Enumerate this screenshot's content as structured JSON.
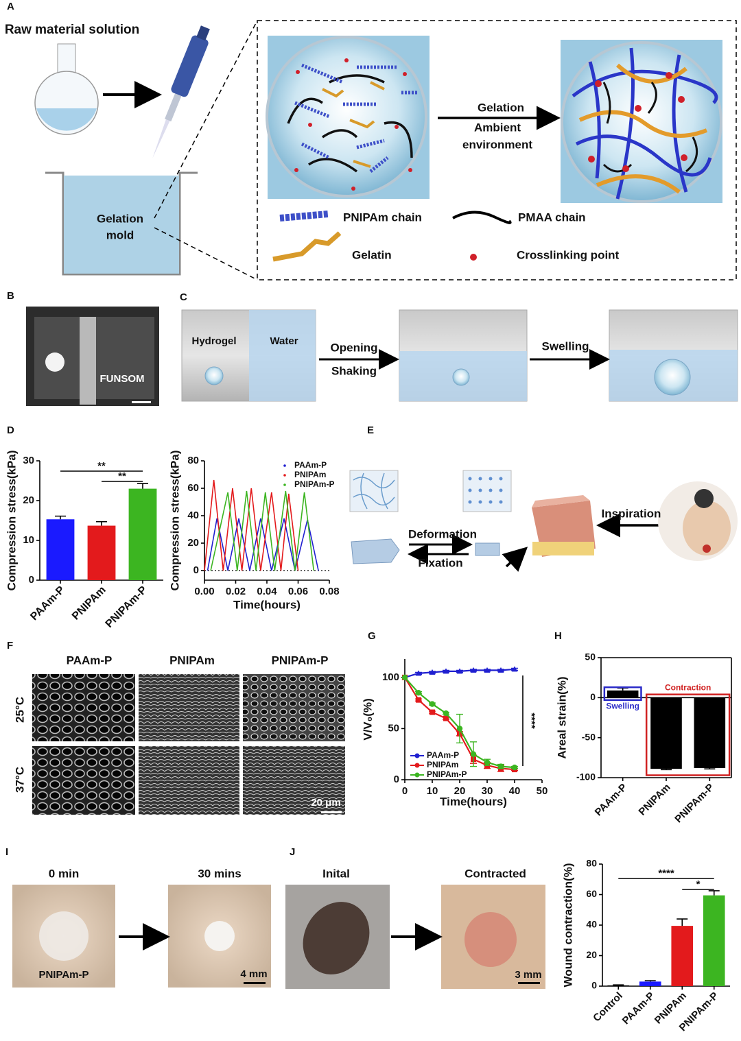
{
  "panels": {
    "letters": [
      "A",
      "B",
      "C",
      "D",
      "E",
      "F",
      "G",
      "H",
      "I",
      "J"
    ]
  },
  "panel_a": {
    "raw_material": "Raw material solution",
    "mold": [
      "Gelation",
      "mold"
    ],
    "process": [
      "Gelation",
      "Ambient",
      "environment"
    ],
    "legend": [
      "PNIPAm chain",
      "PMAA chain",
      "Gelatin",
      "Crosslinking point"
    ]
  },
  "panel_b": {
    "label": "FUNSOM"
  },
  "panel_c": {
    "hydrogel": "Hydrogel",
    "water": "Water",
    "step1": [
      "Opening",
      "Shaking"
    ],
    "step2": "Swelling"
  },
  "panel_e": {
    "deformation": "Deformation",
    "fixation": "Fixation",
    "inspiration": "Inspiration"
  },
  "panel_f": {
    "columns": [
      "PAAm-P",
      "PNIPAm",
      "PNIPAm-P"
    ],
    "rows": [
      "25°C",
      "37°C"
    ],
    "scale": "20 μm"
  },
  "panel_i": {
    "times": [
      "0 min",
      "30 mins"
    ],
    "sample": "PNIPAm-P",
    "scale": "4 mm"
  },
  "panel_j": {
    "states": [
      "Inital",
      "Contracted"
    ],
    "scale": "3 mm"
  },
  "chart_data": [
    {
      "type": "bar",
      "ylabel": "Compression stress(kPa)",
      "categories": [
        "PAAm-P",
        "PNIPAm",
        "PNIPAm-P"
      ],
      "values": [
        15.3,
        13.7,
        23
      ],
      "errors": [
        0.8,
        1.0,
        1.3
      ],
      "colors": [
        "#1a1aff",
        "#e31a1c",
        "#3cb521"
      ],
      "ylim": [
        0,
        30
      ],
      "yticks": [
        0,
        10,
        20,
        30
      ],
      "significance": [
        "**",
        "**"
      ]
    },
    {
      "type": "line",
      "ylabel": "Compression stress(kPa)",
      "xlabel": "Time(hours)",
      "legend": "upper right",
      "series": [
        {
          "name": "PAAm-P",
          "color": "#2020d0",
          "x": [
            0.002,
            0.008,
            0.015,
            0.022,
            0.029,
            0.036,
            0.043,
            0.051,
            0.058,
            0.066,
            0.073
          ],
          "values": [
            0,
            38,
            0,
            38,
            0,
            38,
            0,
            38,
            0,
            37,
            0
          ]
        },
        {
          "name": "PNIPAm",
          "color": "#e31a1c",
          "x": [
            0,
            0.006,
            0.012,
            0.018,
            0.024,
            0.03,
            0.036,
            0.043,
            0.049,
            0.054,
            0.06
          ],
          "values": [
            0,
            66,
            0,
            60,
            0,
            60,
            0,
            57,
            0,
            56,
            0
          ]
        },
        {
          "name": "PNIPAm-P",
          "color": "#3cb521",
          "x": [
            0.004,
            0.015,
            0.021,
            0.027,
            0.033,
            0.039,
            0.045,
            0.052,
            0.058,
            0.064,
            0.07
          ],
          "values": [
            0,
            57,
            0,
            58,
            0,
            57,
            0,
            58,
            0,
            57,
            0
          ]
        }
      ],
      "xlim": [
        0,
        0.08
      ],
      "xticks": [
        {
          "value": 0,
          "label": "0.00"
        },
        0.02,
        0.04,
        0.06,
        0.08
      ],
      "ylim": [
        -7,
        80
      ],
      "yticks": [
        0,
        20,
        40,
        60,
        80
      ]
    },
    {
      "type": "line",
      "ylabel": "V/V₀(%)",
      "xlabel": "Time(hours)",
      "legend": "lower left",
      "series": [
        {
          "name": "PAAm-P",
          "color": "#2020d0",
          "marker": "triangle",
          "x": [
            0,
            5,
            10,
            15,
            20,
            25,
            30,
            35,
            40
          ],
          "values": [
            100,
            104,
            105,
            106,
            106,
            107,
            107,
            107,
            108
          ],
          "errors": [
            0,
            1,
            1,
            1,
            1,
            1,
            1,
            1,
            1
          ]
        },
        {
          "name": "PNIPAm",
          "color": "#e31a1c",
          "marker": "square",
          "x": [
            0,
            5,
            10,
            15,
            20,
            25,
            30,
            35,
            40
          ],
          "values": [
            100,
            78,
            66,
            60,
            45,
            20,
            14,
            11,
            10
          ],
          "errors": [
            0,
            1,
            1,
            1,
            2,
            4,
            3,
            3,
            1
          ]
        },
        {
          "name": "PNIPAm-P",
          "color": "#3cb521",
          "marker": "circle",
          "x": [
            0,
            5,
            10,
            15,
            20,
            25,
            30,
            35,
            40
          ],
          "values": [
            100,
            85,
            74,
            65,
            50,
            25,
            17,
            13,
            12
          ],
          "errors": [
            0,
            1,
            1,
            1,
            14,
            12,
            3,
            2,
            1
          ]
        }
      ],
      "xlim": [
        0,
        50
      ],
      "xticks": [
        0,
        10,
        20,
        30,
        40,
        50
      ],
      "ylim": [
        0,
        118
      ],
      "yticks": [
        0,
        50,
        100
      ],
      "significance": [
        "****"
      ]
    },
    {
      "type": "bar",
      "ylabel": "Areal strain(%)",
      "categories": [
        "PAAm-P",
        "PNIPAm",
        "PNIPAm-P"
      ],
      "values": [
        9,
        -89,
        -88
      ],
      "errors": [
        3,
        1,
        1
      ],
      "colors": [
        "#000000",
        "#000000",
        "#000000"
      ],
      "ylim": [
        -100,
        50
      ],
      "yticks": [
        -100,
        -50,
        0,
        50
      ],
      "annotations": [
        {
          "text": "Swelling",
          "color": "#2a2ac8"
        },
        {
          "text": "Contraction",
          "color": "#d02020"
        }
      ]
    },
    {
      "type": "bar",
      "ylabel": "Wound contraction(%)",
      "categories": [
        "Control",
        "PAAm-P",
        "PNIPAm",
        "PNIPAm-P"
      ],
      "values": [
        0.5,
        3,
        39.5,
        59.5
      ],
      "errors": [
        0.3,
        0.6,
        4.5,
        3
      ],
      "colors": [
        "#000000",
        "#1a1aff",
        "#e31a1c",
        "#3cb521"
      ],
      "ylim": [
        0,
        80
      ],
      "yticks": [
        0,
        20,
        40,
        60,
        80
      ],
      "significance": [
        "****",
        "*"
      ]
    }
  ]
}
